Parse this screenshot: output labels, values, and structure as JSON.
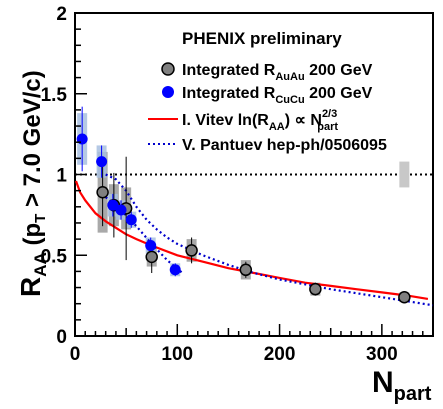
{
  "chart_data": {
    "type": "scatter",
    "legend_title": "PHENIX preliminary",
    "xlabel": "N",
    "xlabel_sub": "part",
    "ylabel": "R",
    "ylabel_sub": "AA",
    "ylabel_rest": " (p",
    "ylabel_rest_sub": "T",
    "ylabel_tail": " > 7.0 GeV/c)",
    "xlim": [
      0,
      350
    ],
    "ylim": [
      0,
      2
    ],
    "x_ticks": [
      0,
      100,
      200,
      300
    ],
    "x_tick_labels": [
      "0",
      "100",
      "200",
      "300"
    ],
    "y_ticks": [
      0,
      0.5,
      1,
      1.5,
      2
    ],
    "y_tick_labels": [
      "0",
      "0.5",
      "1",
      "1.5",
      "2"
    ],
    "reference_line_y": 1,
    "legend_position": "top-right",
    "series": [
      {
        "key": "auau",
        "legend_main": "Integrated R",
        "legend_sub": "AuAu",
        "legend_tail": " 200 GeV",
        "marker": "open-circle-grey",
        "color": "#808080",
        "box_color": "#9a9a9a",
        "points": [
          {
            "x": 27,
            "y": 0.89,
            "err": 0.21,
            "sys": 0.25
          },
          {
            "x": 38,
            "y": 0.81,
            "err": 0.2,
            "sys": 0.13
          },
          {
            "x": 50,
            "y": 0.79,
            "err": 0.32,
            "sys": 0.13
          },
          {
            "x": 75,
            "y": 0.49,
            "err": 0.1,
            "sys": 0.06
          },
          {
            "x": 114,
            "y": 0.53,
            "err": 0.08,
            "sys": 0.07
          },
          {
            "x": 167,
            "y": 0.41,
            "err": 0.05,
            "sys": 0.06
          },
          {
            "x": 235,
            "y": 0.29,
            "err": 0.04,
            "sys": 0.04
          },
          {
            "x": 322,
            "y": 0.24,
            "err": 0.03,
            "sys": 0.03
          }
        ]
      },
      {
        "key": "cucu",
        "legend_main": "Integrated R",
        "legend_sub": "CuCu",
        "legend_tail": " 200 GeV",
        "marker": "filled-circle-blue",
        "color": "#0000ff",
        "box_color": "#a8bfe0",
        "points": [
          {
            "x": 7,
            "y": 1.22,
            "err": 0.2,
            "sys": 0.16
          },
          {
            "x": 26,
            "y": 1.08,
            "err": 0.1,
            "sys": 0.1
          },
          {
            "x": 37,
            "y": 0.81,
            "err": 0.07,
            "sys": 0.07
          },
          {
            "x": 45,
            "y": 0.78,
            "err": 0.06,
            "sys": 0.06
          },
          {
            "x": 55,
            "y": 0.72,
            "err": 0.05,
            "sys": 0.05
          },
          {
            "x": 74,
            "y": 0.56,
            "err": 0.05,
            "sys": 0.05
          },
          {
            "x": 98,
            "y": 0.41,
            "err": 0.04,
            "sys": 0.04
          }
        ]
      }
    ],
    "curves": [
      {
        "key": "vitev",
        "legend_main": "I. Vitev  ln(R",
        "legend_sub": "AA",
        "legend_mid": ") ∝ N",
        "legend_sup": "2/3",
        "legend_sub2": "part",
        "color": "#ff0000",
        "style": "solid",
        "points": [
          [
            1,
            0.96
          ],
          [
            5,
            0.89
          ],
          [
            10,
            0.84
          ],
          [
            20,
            0.76
          ],
          [
            30,
            0.71
          ],
          [
            40,
            0.67
          ],
          [
            50,
            0.63
          ],
          [
            60,
            0.6
          ],
          [
            75,
            0.56
          ],
          [
            100,
            0.5
          ],
          [
            125,
            0.46
          ],
          [
            150,
            0.42
          ],
          [
            175,
            0.39
          ],
          [
            200,
            0.36
          ],
          [
            225,
            0.33
          ],
          [
            250,
            0.31
          ],
          [
            275,
            0.29
          ],
          [
            300,
            0.27
          ],
          [
            325,
            0.25
          ],
          [
            345,
            0.23
          ]
        ]
      },
      {
        "key": "pantuev",
        "legend_main": "V. Pantuev hep-ph/0506095",
        "color": "#0000cc",
        "style": "dotted",
        "points": [
          [
            30,
            1.0
          ],
          [
            40,
            0.97
          ],
          [
            50,
            0.9
          ],
          [
            60,
            0.8
          ],
          [
            70,
            0.72
          ],
          [
            80,
            0.66
          ],
          [
            90,
            0.61
          ],
          [
            100,
            0.57
          ],
          [
            125,
            0.5
          ],
          [
            150,
            0.44
          ],
          [
            175,
            0.39
          ],
          [
            200,
            0.35
          ],
          [
            250,
            0.29
          ],
          [
            300,
            0.24
          ],
          [
            350,
            0.19
          ]
        ]
      },
      {
        "key": "cucu_short",
        "color": "#0000cc",
        "style": "dotted",
        "points": [
          [
            30,
            0.86
          ],
          [
            45,
            0.78
          ],
          [
            60,
            0.68
          ],
          [
            75,
            0.57
          ],
          [
            90,
            0.47
          ],
          [
            105,
            0.39
          ]
        ]
      }
    ]
  }
}
